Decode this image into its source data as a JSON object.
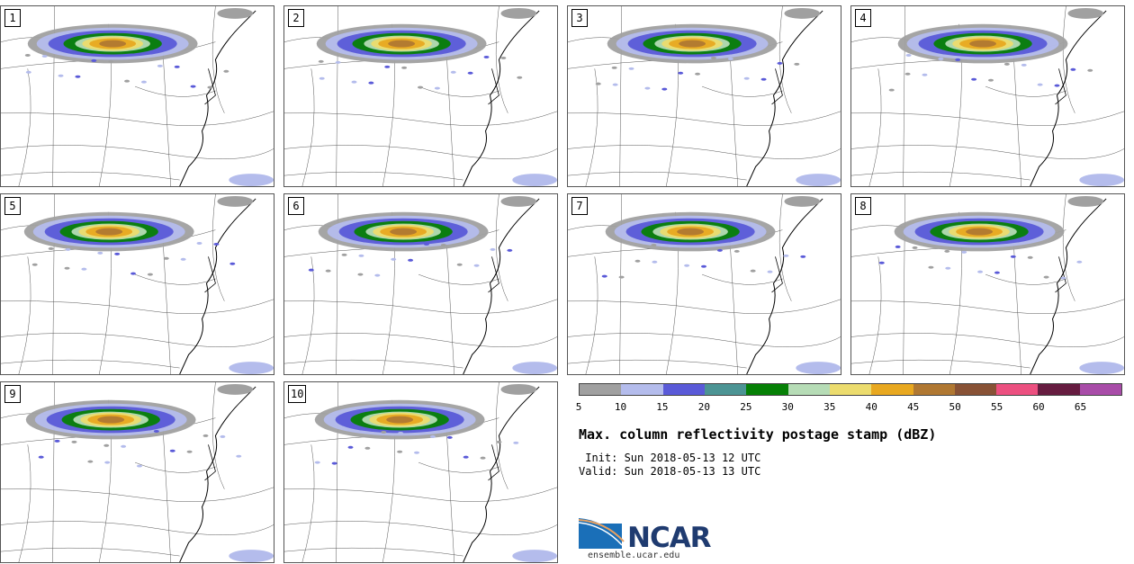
{
  "panels": [
    {
      "label": "1",
      "shift": 0
    },
    {
      "label": "2",
      "shift": 6
    },
    {
      "label": "3",
      "shift": 14
    },
    {
      "label": "4",
      "shift": 22
    },
    {
      "label": "5",
      "shift": -4
    },
    {
      "label": "6",
      "shift": 8
    },
    {
      "label": "7",
      "shift": 12
    },
    {
      "label": "8",
      "shift": 18
    },
    {
      "label": "9",
      "shift": -2
    },
    {
      "label": "10",
      "shift": 4
    }
  ],
  "colorbar": {
    "colors": [
      "#a0a0a0",
      "#b4bcec",
      "#5a5ad8",
      "#4c9494",
      "#068006",
      "#b6dcb6",
      "#ecdc6e",
      "#e8a820",
      "#b07832",
      "#885236",
      "#ec5080",
      "#661c40",
      "#a84ca8"
    ],
    "ticks": [
      "5",
      "10",
      "15",
      "20",
      "25",
      "30",
      "35",
      "40",
      "45",
      "50",
      "55",
      "60",
      "65"
    ]
  },
  "title": "Max. column reflectivity postage stamp (dBZ)",
  "init": " Init: Sun 2018-05-13 12 UTC",
  "valid": "Valid: Sun 2018-05-13 13 UTC",
  "logo": {
    "text": "NCAR",
    "site": "ensemble.ucar.edu"
  }
}
